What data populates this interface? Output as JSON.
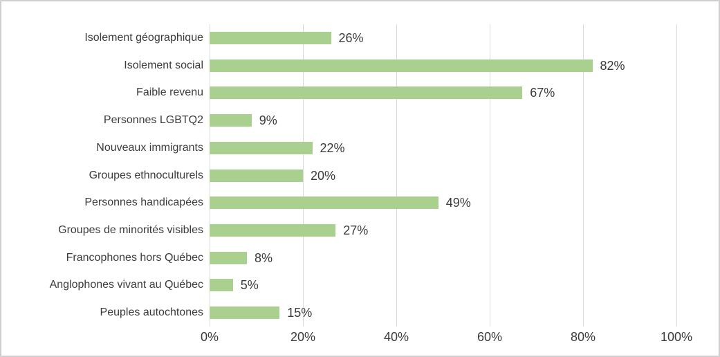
{
  "chart_data": {
    "type": "bar",
    "orientation": "horizontal",
    "title": "",
    "categories": [
      "Isolement géographique",
      "Isolement social",
      "Faible revenu",
      "Personnes LGBTQ2",
      "Nouveaux immigrants",
      "Groupes ethnoculturels",
      "Personnes handicapées",
      "Groupes de minorités visibles",
      "Francophones hors Québec",
      "Anglophones vivant au Québec",
      "Peuples autochtones"
    ],
    "values": [
      26,
      82,
      67,
      9,
      22,
      20,
      49,
      27,
      8,
      5,
      15
    ],
    "data_labels": [
      "26%",
      "82%",
      "67%",
      "9%",
      "22%",
      "20%",
      "49%",
      "27%",
      "8%",
      "5%",
      "15%"
    ],
    "xlim": [
      0,
      100
    ],
    "x_tick_values": [
      0,
      20,
      40,
      60,
      80,
      100
    ],
    "x_tick_labels": [
      "0%",
      "20%",
      "40%",
      "60%",
      "80%",
      "100%"
    ],
    "grid": true,
    "legend": false,
    "colors": {
      "bar": "#a9d08e",
      "gridline": "#d9d9d9",
      "text": "#3b3b3b",
      "background": "#ffffff",
      "frame_border": "#d0cece"
    }
  }
}
